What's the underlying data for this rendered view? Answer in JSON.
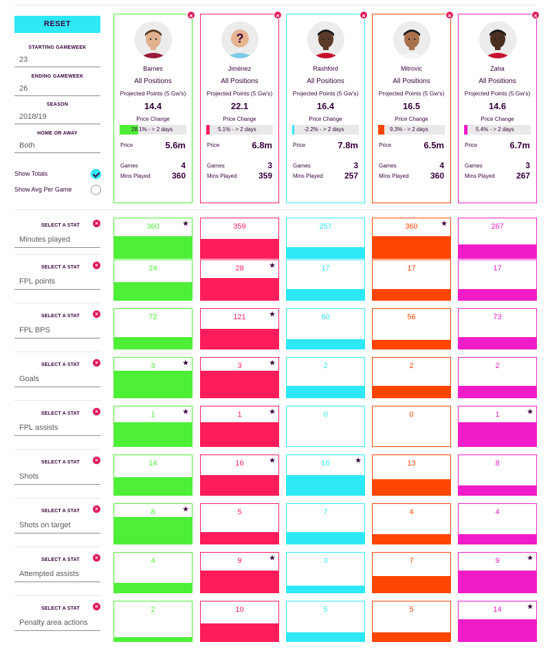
{
  "sidebar": {
    "reset_label": "RESET",
    "starting_gameweek": {
      "label": "STARTING GAMEWEEK",
      "value": "23"
    },
    "ending_gameweek": {
      "label": "ENDING GAMEWEEK",
      "value": "26"
    },
    "season": {
      "label": "SEASON",
      "value": "2018/19"
    },
    "home_away": {
      "label": "HOME OR AWAY",
      "value": "Both"
    },
    "show_totals": {
      "label": "Show Totals",
      "checked": true
    },
    "show_avg": {
      "label": "Show Avg Per Game",
      "checked": false
    }
  },
  "colors": {
    "barnes": "#4ef037",
    "jimenez": "#ff1c5a",
    "rashford": "#2ee8f5",
    "mitrovic": "#ff4500",
    "zaha": "#f01cc8",
    "accent": "#2ee8f5",
    "text": "#37003c",
    "close": "#e01a5b"
  },
  "labels": {
    "projected": "Projected Points (5 Gw's)",
    "price_change": "Price Change",
    "price": "Price",
    "games": "Games",
    "mins": "Mins Played",
    "select_stat": "SELECT A STAT"
  },
  "players": [
    {
      "name": "Barnes",
      "position": "All Positions",
      "projected": "14.4",
      "price_change": "28.1% - > 2 days",
      "price_change_fill": 0.281,
      "price": "5.6m",
      "games": "4",
      "mins": "360",
      "color": "#4ef037",
      "icon": "player-avatar-icon"
    },
    {
      "name": "Jiménez",
      "position": "All Positions",
      "projected": "22.1",
      "price_change": "5.1% - > 2 days",
      "price_change_fill": 0.051,
      "price": "6.8m",
      "games": "3",
      "mins": "359",
      "color": "#ff1c5a",
      "icon": "unknown-player-icon"
    },
    {
      "name": "Rashford",
      "position": "All Positions",
      "projected": "16.4",
      "price_change": "-2.2% - > 2 days",
      "price_change_fill": 0.022,
      "price": "7.8m",
      "games": "3",
      "mins": "257",
      "color": "#2ee8f5",
      "icon": "player-avatar-icon"
    },
    {
      "name": "Mitrovic",
      "position": "All Positions",
      "projected": "16.5",
      "price_change": "9.3% - > 2 days",
      "price_change_fill": 0.093,
      "price": "6.5m",
      "games": "4",
      "mins": "360",
      "color": "#ff4500",
      "icon": "player-avatar-icon"
    },
    {
      "name": "Zaha",
      "position": "All Positions",
      "projected": "14.6",
      "price_change": "5.4% - > 2 days",
      "price_change_fill": 0.054,
      "price": "6.7m",
      "games": "3",
      "mins": "267",
      "color": "#f01cc8",
      "icon": "player-avatar-icon"
    }
  ],
  "stats": [
    {
      "name": "Minutes played",
      "values": [
        "360",
        "359",
        "257",
        "360",
        "267"
      ],
      "fills": [
        0.55,
        0.48,
        0.28,
        0.55,
        0.35
      ],
      "stars": [
        true,
        false,
        false,
        true,
        false
      ]
    },
    {
      "name": "FPL points",
      "values": [
        "24",
        "28",
        "17",
        "17",
        "17"
      ],
      "fills": [
        0.45,
        0.55,
        0.28,
        0.28,
        0.28
      ],
      "stars": [
        false,
        true,
        false,
        false,
        false
      ]
    },
    {
      "name": "FPL BPS",
      "values": [
        "72",
        "121",
        "60",
        "56",
        "73"
      ],
      "fills": [
        0.3,
        0.5,
        0.25,
        0.22,
        0.3
      ],
      "stars": [
        false,
        true,
        false,
        false,
        false
      ]
    },
    {
      "name": "Goals",
      "values": [
        "3",
        "3",
        "2",
        "2",
        "2"
      ],
      "fills": [
        0.68,
        0.68,
        0.3,
        0.3,
        0.3
      ],
      "stars": [
        true,
        true,
        false,
        false,
        false
      ]
    },
    {
      "name": "FPL assists",
      "values": [
        "1",
        "1",
        "0",
        "0",
        "1"
      ],
      "fills": [
        0.6,
        0.6,
        0,
        0,
        0.6
      ],
      "stars": [
        true,
        true,
        false,
        false,
        true
      ]
    },
    {
      "name": "Shots",
      "values": [
        "14",
        "16",
        "16",
        "13",
        "8"
      ],
      "fills": [
        0.45,
        0.5,
        0.5,
        0.4,
        0.25
      ],
      "stars": [
        false,
        true,
        true,
        false,
        false
      ]
    },
    {
      "name": "Shots on target",
      "values": [
        "8",
        "5",
        "7",
        "4",
        "4"
      ],
      "fills": [
        0.68,
        0.3,
        0.3,
        0.25,
        0.25
      ],
      "stars": [
        true,
        false,
        false,
        false,
        false
      ]
    },
    {
      "name": "Attempted assists",
      "values": [
        "4",
        "9",
        "3",
        "7",
        "9"
      ],
      "fills": [
        0.25,
        0.55,
        0.17,
        0.42,
        0.55
      ],
      "stars": [
        false,
        true,
        false,
        false,
        true
      ]
    },
    {
      "name": "Penalty area actions",
      "values": [
        "2",
        "10",
        "5",
        "5",
        "14"
      ],
      "fills": [
        0.1,
        0.45,
        0.22,
        0.22,
        0.55
      ],
      "stars": [
        false,
        false,
        false,
        false,
        true
      ]
    }
  ]
}
